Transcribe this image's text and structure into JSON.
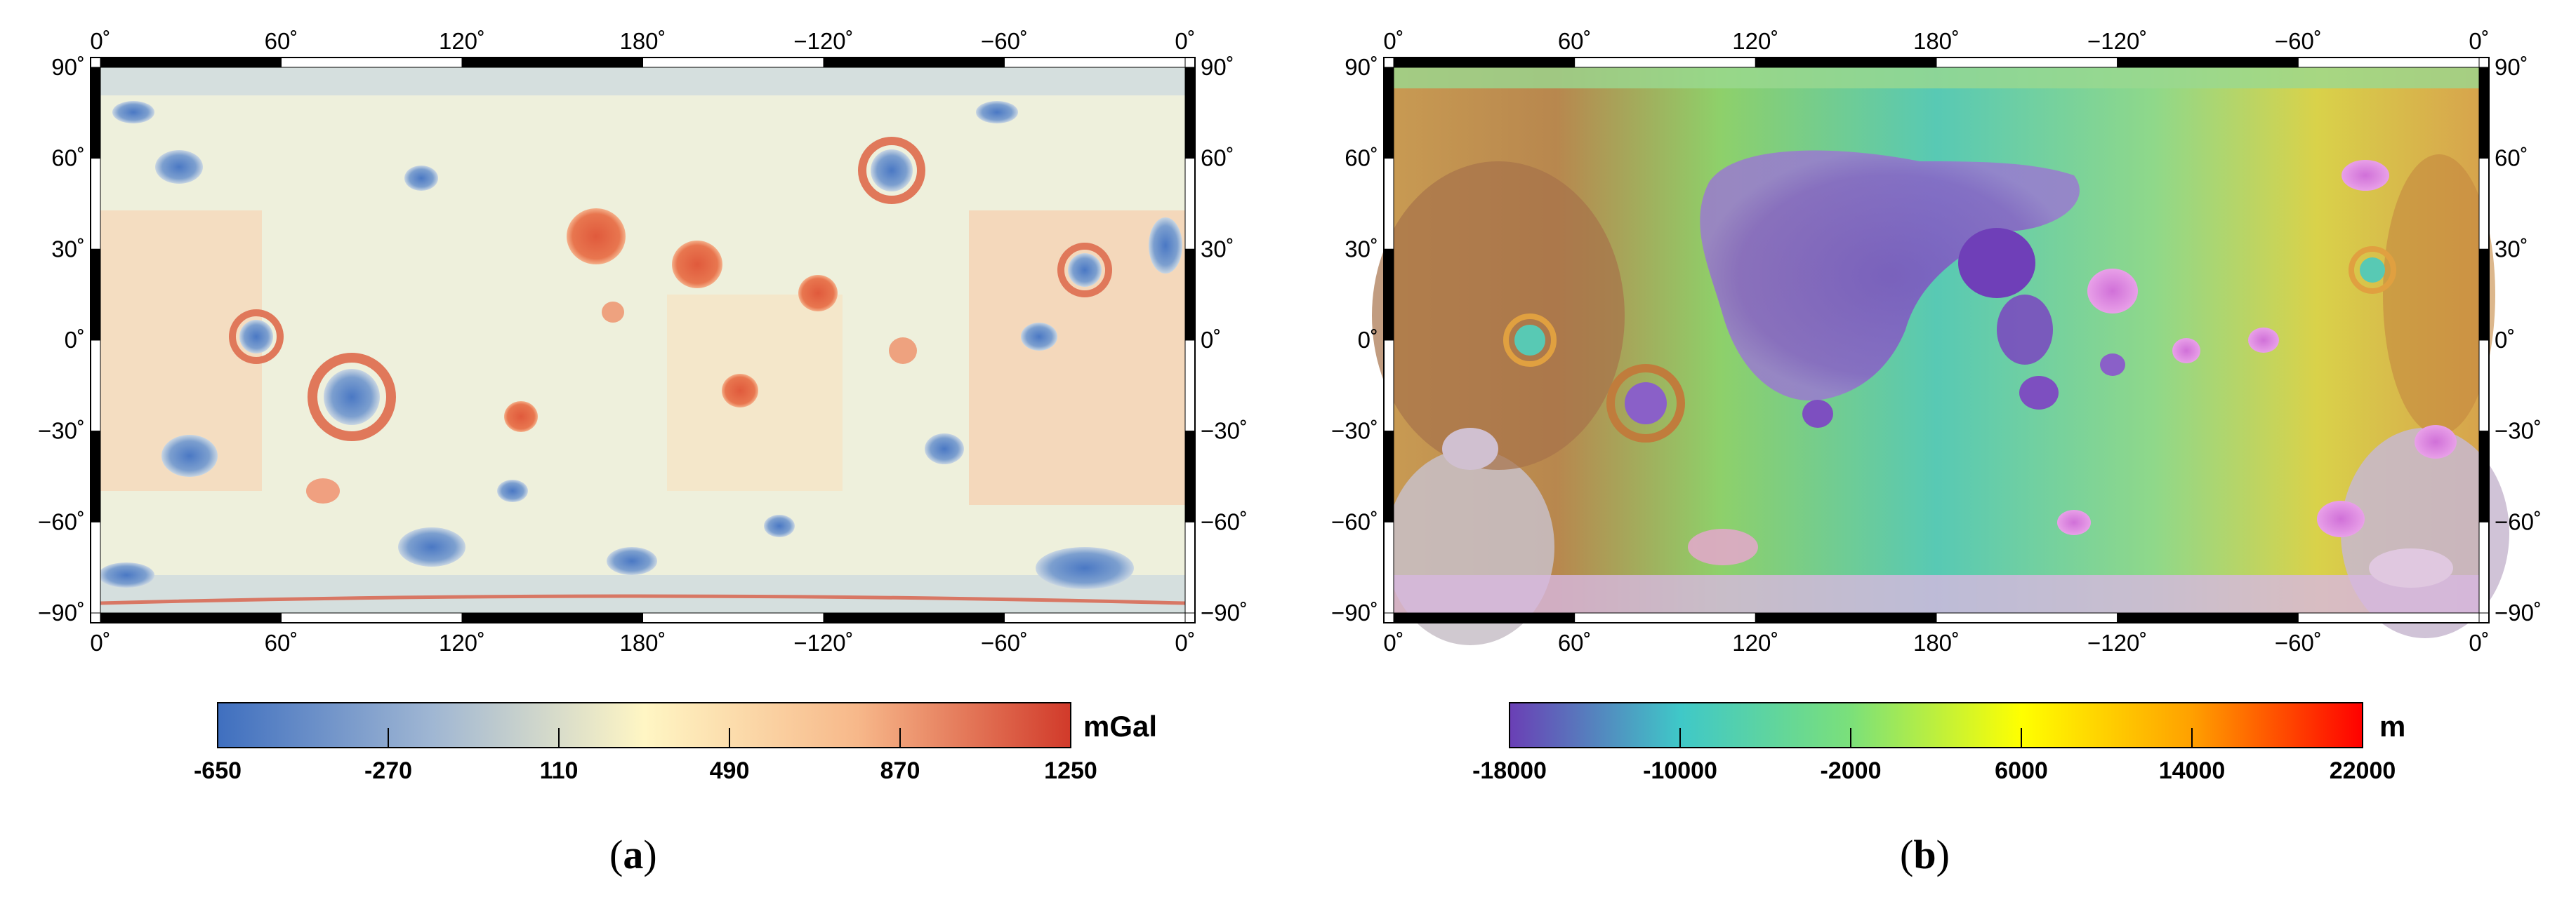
{
  "panels": [
    {
      "id": "a",
      "caption_letter": "a",
      "map_kind": "gravity anomaly",
      "lon_labels": [
        "0˚",
        "60˚",
        "120˚",
        "180˚",
        "−120˚",
        "−60˚",
        "0˚"
      ],
      "lat_labels": [
        "90˚",
        "60˚",
        "30˚",
        "0˚",
        "−30˚",
        "−60˚",
        "−90˚"
      ],
      "colorbar": {
        "unit": "mGal",
        "ticks": [
          "-650",
          "-270",
          "110",
          "490",
          "870",
          "1250"
        ],
        "min": -650,
        "max": 1250,
        "colors": [
          "#3f6fbf",
          "#9fb6d3",
          "#fff6c4",
          "#f7b88a",
          "#d13a2a"
        ]
      }
    },
    {
      "id": "b",
      "caption_letter": "b",
      "map_kind": "topography",
      "lon_labels": [
        "0˚",
        "60˚",
        "120˚",
        "180˚",
        "−120˚",
        "−60˚",
        "0˚"
      ],
      "lat_labels": [
        "90˚",
        "60˚",
        "30˚",
        "0˚",
        "−30˚",
        "−60˚",
        "−90˚"
      ],
      "colorbar": {
        "unit": "m",
        "ticks": [
          "-18000",
          "-10000",
          "-2000",
          "6000",
          "14000",
          "22000"
        ],
        "min": -18000,
        "max": 22000,
        "colors": [
          "#6a3fb5",
          "#3fc8c8",
          "#7be07a",
          "#ffff00",
          "#ffa000",
          "#ff0000"
        ]
      }
    }
  ]
}
